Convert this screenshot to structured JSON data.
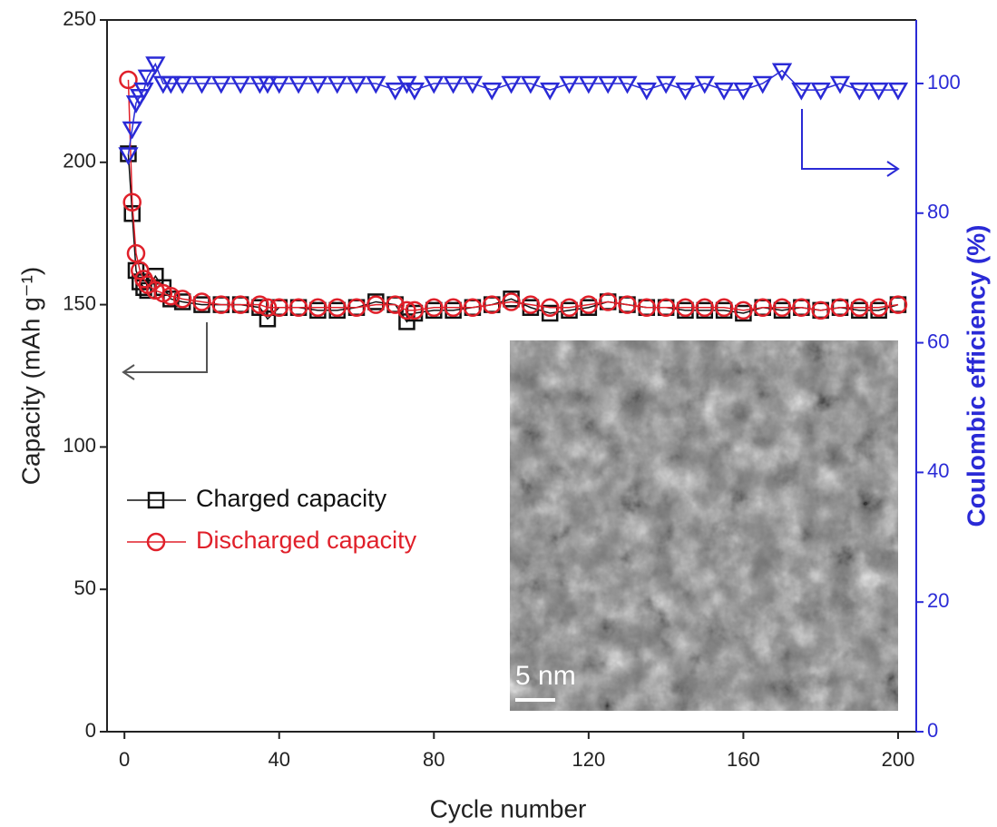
{
  "chart_data": {
    "type": "line",
    "x_label": "Cycle number",
    "y_label": "Capacity (mAh g⁻¹)",
    "y2_label": "Coulombic efficiency (%)",
    "inset_scale_label": "5 nm",
    "x": [
      1,
      2,
      3,
      4,
      5,
      6,
      8,
      10,
      12,
      15,
      20,
      25,
      30,
      35,
      37,
      40,
      45,
      50,
      55,
      60,
      65,
      70,
      73,
      75,
      80,
      85,
      90,
      95,
      100,
      105,
      110,
      115,
      120,
      125,
      130,
      135,
      140,
      145,
      150,
      155,
      160,
      165,
      170,
      175,
      180,
      185,
      190,
      195,
      200
    ],
    "series": [
      {
        "name": "Charged capacity",
        "color": "#111111",
        "marker": "square",
        "values": [
          203,
          182,
          162,
          158,
          156,
          155,
          160,
          156,
          152,
          151,
          150,
          150,
          150,
          149,
          145,
          149,
          149,
          148,
          148,
          149,
          151,
          150,
          144,
          147,
          148,
          148,
          149,
          150,
          152,
          149,
          147,
          148,
          149,
          151,
          150,
          149,
          149,
          148,
          148,
          148,
          147,
          149,
          148,
          149,
          148,
          149,
          148,
          148,
          150
        ]
      },
      {
        "name": "Discharged capacity",
        "color": "#e0202a",
        "marker": "circle",
        "values": [
          229,
          186,
          168,
          162,
          159,
          157,
          155,
          154,
          153,
          152,
          151,
          150,
          150,
          150,
          149,
          149,
          149,
          149,
          149,
          149,
          150,
          150,
          148,
          148,
          149,
          149,
          149,
          150,
          151,
          150,
          149,
          149,
          150,
          151,
          150,
          149,
          149,
          149,
          149,
          149,
          148,
          149,
          149,
          149,
          148,
          149,
          149,
          149,
          150
        ]
      },
      {
        "color": "#2a2ad6",
        "marker": "triangle-down",
        "axis": "y2",
        "values": [
          89,
          93,
          97,
          98,
          99,
          101,
          103,
          100,
          100,
          100,
          100,
          100,
          100,
          100,
          100,
          100,
          100,
          100,
          100,
          100,
          100,
          99,
          100,
          99,
          100,
          100,
          100,
          99,
          100,
          100,
          99,
          100,
          100,
          100,
          100,
          99,
          100,
          99,
          100,
          99,
          99,
          100,
          102,
          99,
          99,
          100,
          99,
          99,
          99
        ]
      }
    ],
    "xlim": [
      -4.5,
      204.7
    ],
    "xticks": [
      0,
      40,
      80,
      120,
      160,
      200
    ],
    "ylim": [
      0,
      250
    ],
    "yticks": [
      0,
      50,
      100,
      150,
      200,
      250
    ],
    "y2lim": [
      0,
      109.8
    ],
    "y2ticks": [
      0,
      20,
      40,
      60,
      80,
      100
    ],
    "y2_color": "#2a2ad6"
  }
}
